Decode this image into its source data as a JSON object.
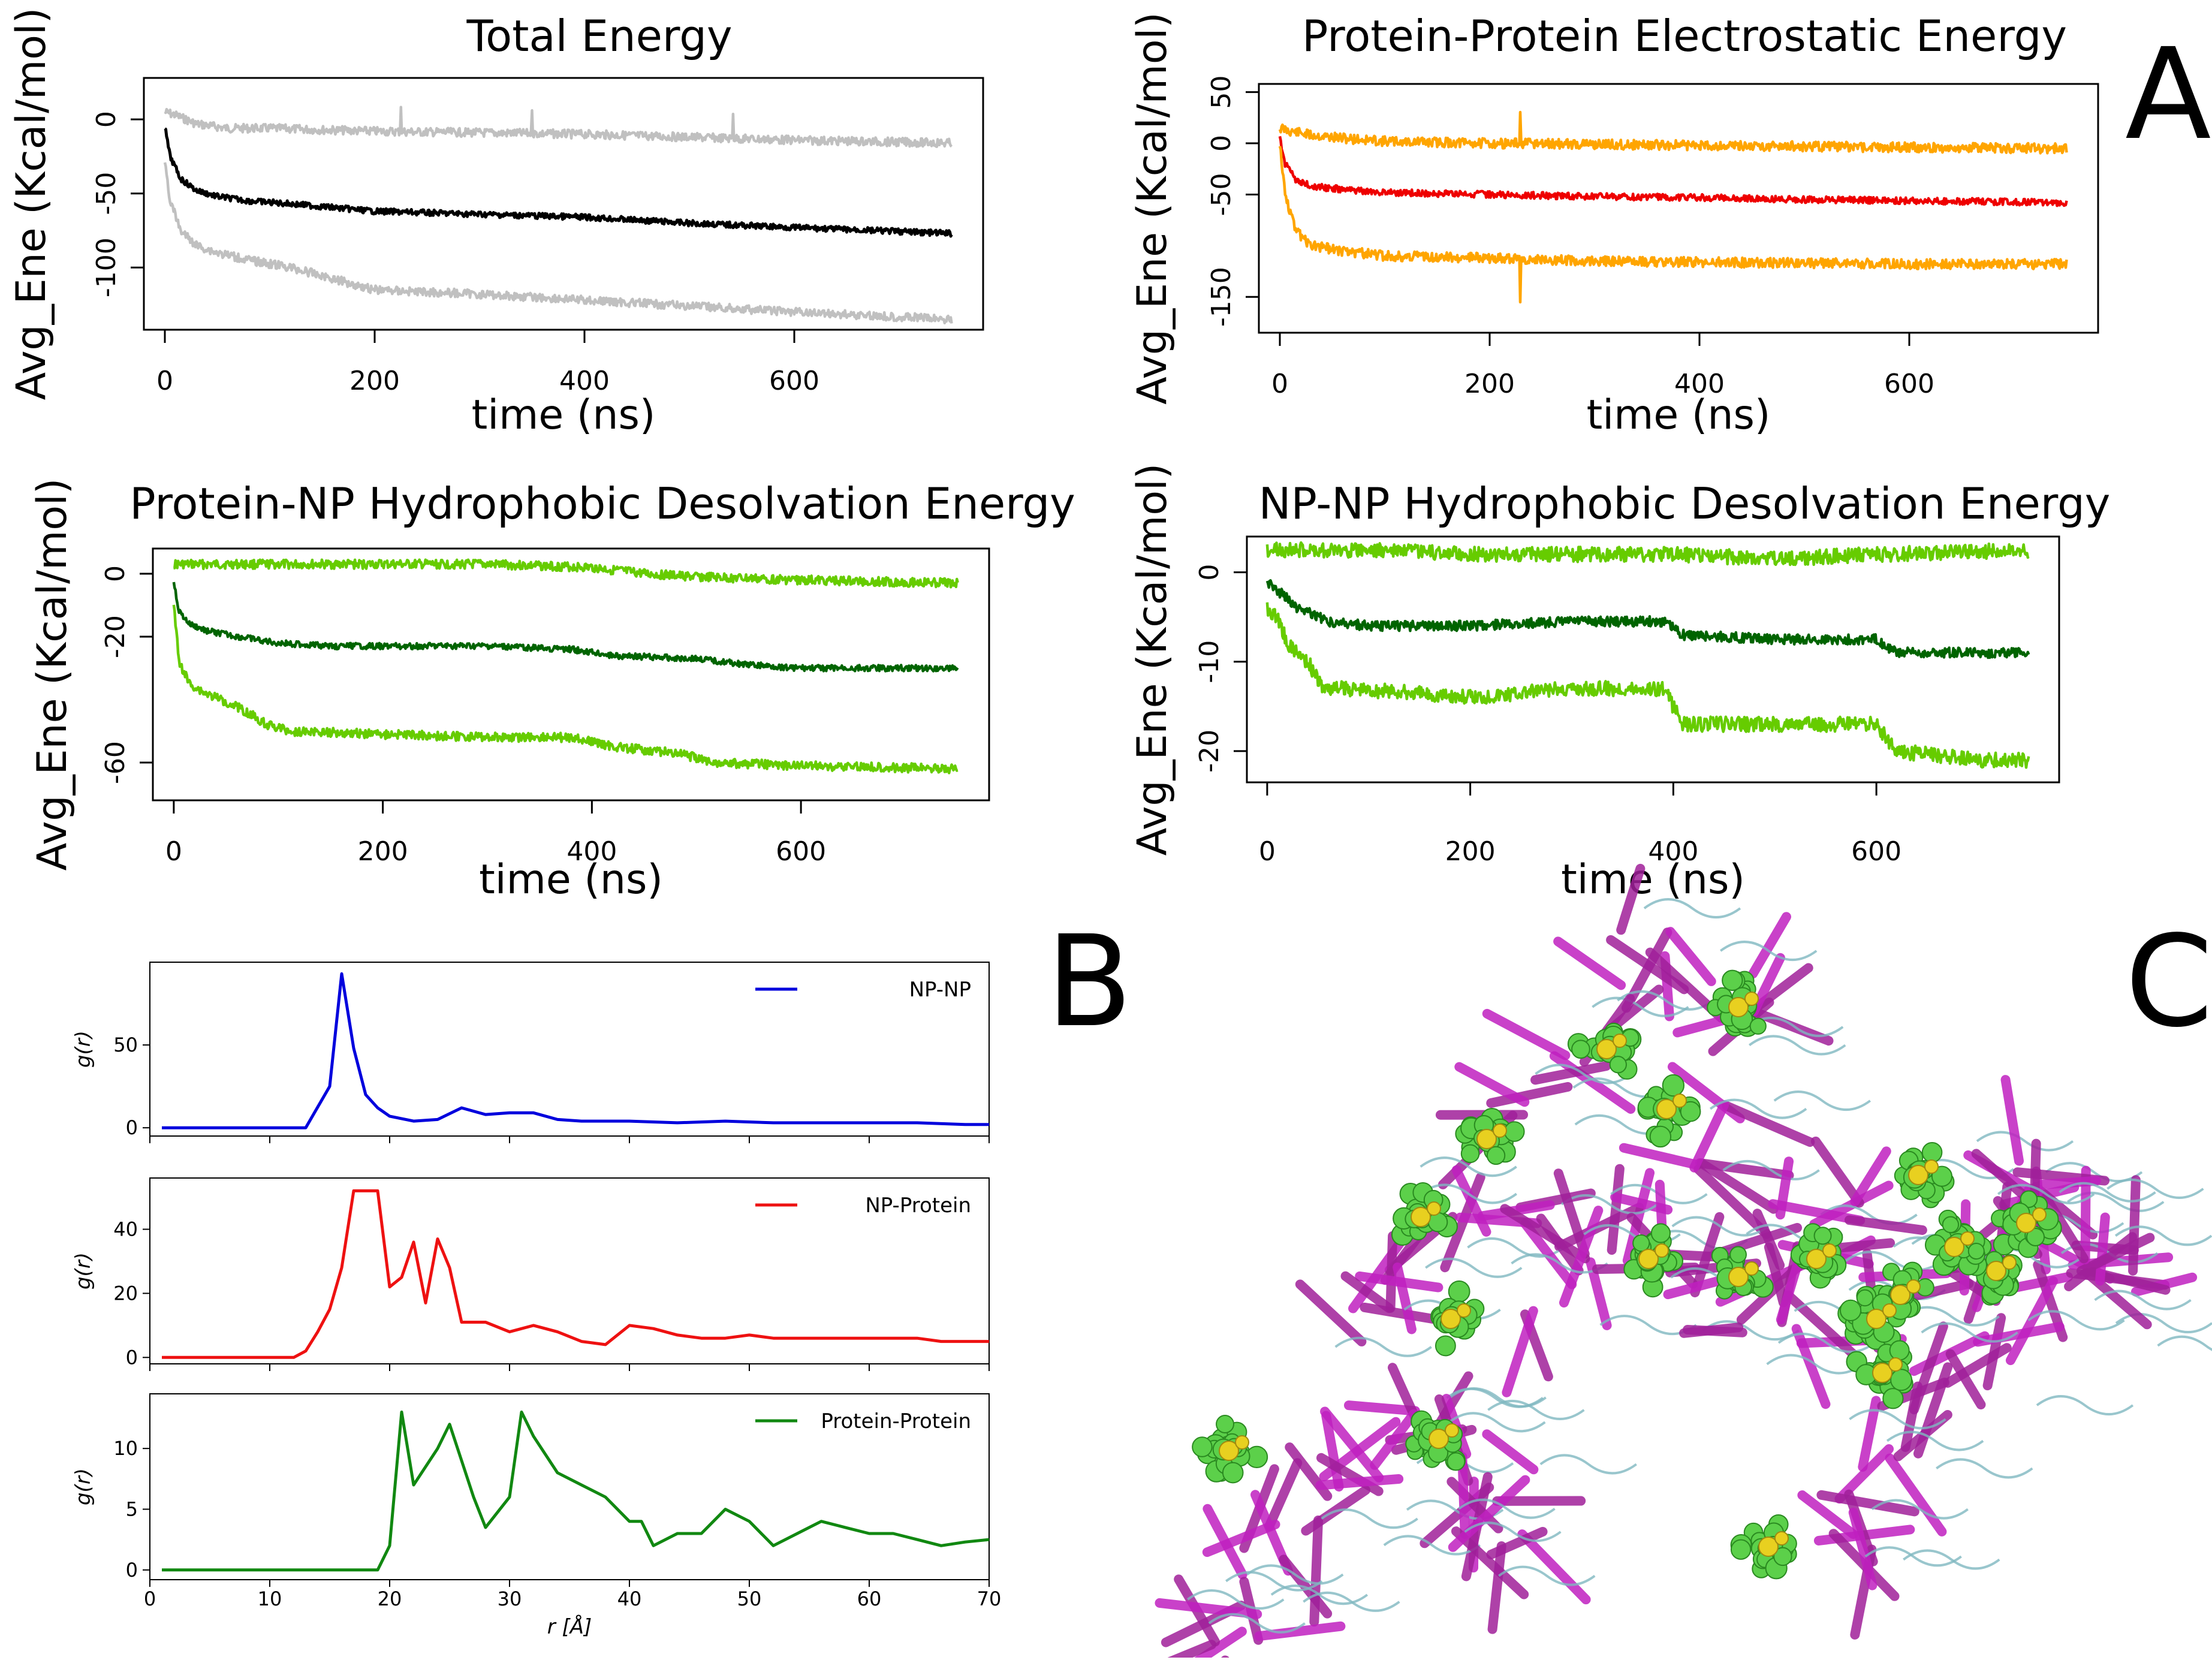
{
  "panel_labels": {
    "a": "A",
    "b": "B",
    "c": "C"
  },
  "colors": {
    "gray": "#c0c0c0",
    "black": "#000000",
    "orange": "#ffa500",
    "red": "#ee0000",
    "lightgreen": "#66cc00",
    "darkgreen": "#006400",
    "blue": "#0000dd",
    "gred": "#ee1111",
    "ggreen": "#118811"
  },
  "chart_data": [
    {
      "id": "total",
      "type": "line",
      "title": "Total Energy",
      "xlabel": "time (ns)",
      "ylabel": "Avg_Ene (Kcal/mol)",
      "xlim": [
        -20,
        780
      ],
      "ylim": [
        -142,
        28
      ],
      "xticks": [
        0,
        200,
        400,
        600
      ],
      "yticks": [
        0,
        -50,
        -100
      ],
      "series": [
        {
          "name": "upper",
          "color": "#c0c0c0",
          "x": [
            0,
            10,
            30,
            60,
            100,
            200,
            300,
            400,
            500,
            600,
            750
          ],
          "y": [
            5,
            3,
            -3,
            -6,
            -6,
            -8,
            -9,
            -10,
            -12,
            -14,
            -16
          ]
        },
        {
          "name": "mean",
          "color": "#000000",
          "x": [
            0,
            5,
            15,
            30,
            50,
            80,
            120,
            200,
            300,
            400,
            500,
            600,
            750
          ],
          "y": [
            -5,
            -25,
            -40,
            -48,
            -52,
            -55,
            -57,
            -62,
            -64,
            -66,
            -70,
            -73,
            -77
          ]
        },
        {
          "name": "lower",
          "color": "#c0c0c0",
          "x": [
            0,
            5,
            15,
            30,
            50,
            80,
            120,
            200,
            300,
            400,
            500,
            600,
            750
          ],
          "y": [
            -28,
            -55,
            -75,
            -85,
            -90,
            -95,
            -100,
            -115,
            -118,
            -122,
            -126,
            -130,
            -135
          ]
        }
      ]
    },
    {
      "id": "elec",
      "type": "line",
      "title": "Protein-Protein Electrostatic Energy",
      "xlabel": "time (ns)",
      "ylabel": "Avg_Ene (Kcal/mol)",
      "xlim": [
        -20,
        780
      ],
      "ylim": [
        -185,
        58
      ],
      "xticks": [
        0,
        200,
        400,
        600
      ],
      "yticks": [
        50,
        0,
        -50,
        -150
      ],
      "series": [
        {
          "name": "upper",
          "color": "#ffa500",
          "x": [
            0,
            10,
            30,
            60,
            100,
            200,
            300,
            400,
            500,
            600,
            750
          ],
          "y": [
            15,
            12,
            8,
            5,
            2,
            0,
            -1,
            -2,
            -3,
            -4,
            -5
          ]
        },
        {
          "name": "mean",
          "color": "#ee0000",
          "x": [
            0,
            5,
            15,
            30,
            60,
            100,
            200,
            300,
            400,
            500,
            600,
            750
          ],
          "y": [
            5,
            -20,
            -35,
            -42,
            -45,
            -48,
            -50,
            -52,
            -53,
            -55,
            -56,
            -58
          ]
        },
        {
          "name": "lower",
          "color": "#ffa500",
          "x": [
            0,
            5,
            15,
            30,
            60,
            100,
            200,
            300,
            400,
            500,
            600,
            750
          ],
          "y": [
            0,
            -50,
            -85,
            -100,
            -105,
            -110,
            -112,
            -115,
            -116,
            -117,
            -118,
            -118
          ]
        }
      ]
    },
    {
      "id": "pnp",
      "type": "line",
      "title": "Protein-NP Hydrophobic Desolvation Energy",
      "xlabel": "time (ns)",
      "ylabel": "Avg_Ene (Kcal/mol)",
      "xlim": [
        -20,
        780
      ],
      "ylim": [
        -72,
        8
      ],
      "xticks": [
        0,
        200,
        400,
        600
      ],
      "yticks": [
        0,
        -20,
        -60
      ],
      "series": [
        {
          "name": "upper",
          "color": "#66cc00",
          "x": [
            0,
            100,
            200,
            300,
            400,
            450,
            500,
            600,
            750
          ],
          "y": [
            3,
            3,
            3,
            3,
            2,
            0,
            -1,
            -2,
            -3
          ]
        },
        {
          "name": "mean",
          "color": "#006400",
          "x": [
            0,
            5,
            15,
            30,
            60,
            100,
            150,
            200,
            300,
            380,
            420,
            500,
            550,
            600,
            750
          ],
          "y": [
            -2,
            -12,
            -16,
            -18,
            -20,
            -22,
            -23,
            -23,
            -23,
            -24,
            -26,
            -27,
            -29,
            -30,
            -30
          ]
        },
        {
          "name": "lower",
          "color": "#66cc00",
          "x": [
            0,
            5,
            15,
            30,
            60,
            90,
            110,
            200,
            300,
            380,
            420,
            480,
            520,
            600,
            750
          ],
          "y": [
            -10,
            -28,
            -35,
            -38,
            -42,
            -48,
            -50,
            -51,
            -52,
            -52,
            -55,
            -57,
            -60,
            -61,
            -62
          ]
        }
      ]
    },
    {
      "id": "npnp",
      "type": "line",
      "title": "NP-NP Hydrophobic Desolvation Energy",
      "xlabel": "time (ns)",
      "ylabel": "Avg_Ene (Kcal/mol)",
      "xlim": [
        -20,
        780
      ],
      "ylim": [
        -23.5,
        4
      ],
      "xticks": [
        0,
        200,
        400,
        600
      ],
      "yticks": [
        0,
        -10,
        -20
      ],
      "series": [
        {
          "name": "upper",
          "color": "#66cc00",
          "x": [
            0,
            100,
            200,
            300,
            400,
            500,
            600,
            750
          ],
          "y": [
            2.5,
            2.5,
            2,
            2,
            2,
            1.5,
            2,
            2.5
          ]
        },
        {
          "name": "mean",
          "color": "#006400",
          "x": [
            0,
            10,
            30,
            60,
            100,
            200,
            300,
            390,
            410,
            500,
            600,
            620,
            700,
            750
          ],
          "y": [
            -1,
            -2,
            -4,
            -5.5,
            -6,
            -6,
            -5.5,
            -5.5,
            -7,
            -7.5,
            -7.5,
            -9,
            -9,
            -9
          ]
        },
        {
          "name": "lower",
          "color": "#66cc00",
          "x": [
            0,
            10,
            20,
            40,
            55,
            80,
            200,
            300,
            390,
            410,
            500,
            600,
            620,
            700,
            750
          ],
          "y": [
            -4,
            -5,
            -8,
            -10,
            -13,
            -13,
            -14,
            -13,
            -13,
            -17,
            -17,
            -17,
            -20,
            -21,
            -21
          ]
        }
      ]
    },
    {
      "id": "gr_npnp",
      "type": "line",
      "legend": "NP-NP",
      "ylabel": "g(r)",
      "color": "#0000dd",
      "xlim": [
        0,
        70
      ],
      "ylim": [
        -5,
        100
      ],
      "yticks": [
        0,
        50
      ],
      "x": [
        1,
        13,
        15,
        16,
        17,
        18,
        19,
        20,
        22,
        24,
        26,
        28,
        30,
        32,
        34,
        36,
        40,
        44,
        48,
        52,
        56,
        60,
        64,
        68,
        70
      ],
      "y": [
        0,
        0,
        25,
        93,
        48,
        20,
        12,
        7,
        4,
        5,
        12,
        8,
        9,
        9,
        5,
        4,
        4,
        3,
        4,
        3,
        3,
        3,
        3,
        2,
        2
      ]
    },
    {
      "id": "gr_nppr",
      "type": "line",
      "legend": "NP-Protein",
      "ylabel": "g(r)",
      "color": "#ee1111",
      "xlim": [
        0,
        70
      ],
      "ylim": [
        -2,
        56
      ],
      "yticks": [
        0,
        20,
        40
      ],
      "x": [
        1,
        12,
        13,
        14,
        15,
        16,
        17,
        18,
        19,
        20,
        21,
        22,
        23,
        24,
        25,
        26,
        27,
        28,
        30,
        32,
        34,
        36,
        38,
        40,
        42,
        44,
        46,
        48,
        50,
        52,
        54,
        56,
        58,
        60,
        62,
        64,
        66,
        68,
        70
      ],
      "y": [
        0,
        0,
        2,
        8,
        15,
        28,
        52,
        52,
        52,
        22,
        25,
        36,
        17,
        37,
        28,
        11,
        11,
        11,
        8,
        10,
        8,
        5,
        4,
        10,
        9,
        7,
        6,
        6,
        7,
        6,
        6,
        6,
        6,
        6,
        6,
        6,
        5,
        5,
        5
      ]
    },
    {
      "id": "gr_prpr",
      "type": "line",
      "legend": "Protein-Protein",
      "ylabel": "g(r)",
      "color": "#118811",
      "xlim": [
        0,
        70
      ],
      "ylim": [
        -0.8,
        14.5
      ],
      "yticks": [
        0,
        5,
        10
      ],
      "x": [
        1,
        19,
        20,
        21,
        22,
        24,
        25,
        26,
        27,
        28,
        30,
        31,
        32,
        34,
        36,
        38,
        40,
        41,
        42,
        44,
        46,
        48,
        50,
        52,
        54,
        56,
        58,
        60,
        62,
        64,
        66,
        68,
        70
      ],
      "y": [
        0,
        0,
        2,
        13,
        7,
        10,
        12,
        9,
        6,
        3.5,
        6,
        13,
        11,
        8,
        7,
        6,
        4,
        4,
        2,
        3,
        3,
        5,
        4,
        2,
        3,
        4,
        3.5,
        3,
        3,
        2.5,
        2,
        2.3,
        2.5
      ]
    }
  ],
  "gr_axis": {
    "xlabel": "r [Å]",
    "xticks": [
      0,
      10,
      20,
      30,
      40,
      50,
      60,
      70
    ]
  }
}
